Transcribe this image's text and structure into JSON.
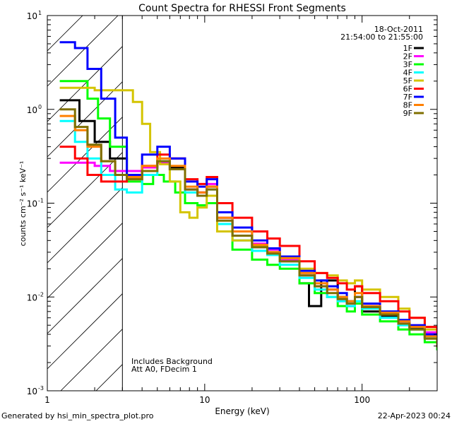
{
  "chart_data": {
    "type": "line",
    "title": "Count Spectra for RHESSI Front Segments",
    "xlabel": "Energy (keV)",
    "ylabel": "counts cm⁻² s⁻¹ keV⁻¹",
    "xscale": "log",
    "yscale": "log",
    "xlim": [
      1,
      300
    ],
    "ylim": [
      0.001,
      10
    ],
    "x_tick_labels": [
      {
        "value": 1,
        "label": "1"
      },
      {
        "value": 10,
        "label": "10"
      },
      {
        "value": 100,
        "label": "100"
      }
    ],
    "y_tick_labels": [
      {
        "value": 10,
        "base": "10",
        "exp": "1"
      },
      {
        "value": 1,
        "base": "10",
        "exp": "0"
      },
      {
        "value": 0.1,
        "base": "10",
        "exp": "-1"
      },
      {
        "value": 0.01,
        "base": "10",
        "exp": "-2"
      },
      {
        "value": 0.001,
        "base": "10",
        "exp": "-3"
      }
    ],
    "hatched_region_kev": [
      1,
      3
    ],
    "date": "18-Oct-2011",
    "time_range": "21:54:00 to 21:55:00",
    "annotations": [
      "Includes Background",
      "Att A0, FDecim 1"
    ],
    "legend_position": "top-right",
    "series": [
      {
        "name": "1F",
        "color": "#000000",
        "points": [
          [
            1.2,
            1.25
          ],
          [
            1.6,
            0.75
          ],
          [
            2.0,
            0.45
          ],
          [
            2.5,
            0.3
          ],
          [
            3.2,
            0.22
          ],
          [
            4.0,
            0.24
          ],
          [
            5.0,
            0.28
          ],
          [
            6.0,
            0.24
          ],
          [
            7.5,
            0.14
          ],
          [
            9.0,
            0.13
          ],
          [
            10.3,
            0.15
          ],
          [
            12,
            0.07
          ],
          [
            15,
            0.045
          ],
          [
            20,
            0.034
          ],
          [
            25,
            0.03
          ],
          [
            30,
            0.024
          ],
          [
            40,
            0.014
          ],
          [
            46,
            0.008
          ],
          [
            55,
            0.015
          ],
          [
            70,
            0.01
          ],
          [
            80,
            0.008
          ],
          [
            90,
            0.013
          ],
          [
            100,
            0.007
          ],
          [
            130,
            0.0063
          ],
          [
            170,
            0.0052
          ],
          [
            200,
            0.0046
          ],
          [
            250,
            0.0037
          ],
          [
            300,
            0.0028
          ]
        ]
      },
      {
        "name": "2F",
        "color": "#ff00ff",
        "points": [
          [
            1.2,
            0.27
          ],
          [
            1.6,
            0.27
          ],
          [
            2.0,
            0.25
          ],
          [
            2.5,
            0.22
          ],
          [
            3.2,
            0.22
          ],
          [
            4.0,
            0.24
          ],
          [
            5.0,
            0.27
          ],
          [
            6.0,
            0.23
          ],
          [
            7.5,
            0.14
          ],
          [
            9.0,
            0.13
          ],
          [
            10.3,
            0.16
          ],
          [
            12,
            0.07
          ],
          [
            15,
            0.05
          ],
          [
            20,
            0.037
          ],
          [
            25,
            0.032
          ],
          [
            30,
            0.025
          ],
          [
            40,
            0.017
          ],
          [
            50,
            0.013
          ],
          [
            60,
            0.012
          ],
          [
            70,
            0.009
          ],
          [
            80,
            0.008
          ],
          [
            90,
            0.01
          ],
          [
            100,
            0.008
          ],
          [
            130,
            0.0065
          ],
          [
            170,
            0.0055
          ],
          [
            200,
            0.005
          ],
          [
            250,
            0.0042
          ],
          [
            300,
            0.0035
          ]
        ]
      },
      {
        "name": "3F",
        "color": "#00ff00",
        "points": [
          [
            1.2,
            2.0
          ],
          [
            1.5,
            2.0
          ],
          [
            1.8,
            1.3
          ],
          [
            2.1,
            0.8
          ],
          [
            2.5,
            0.4
          ],
          [
            3.2,
            0.17
          ],
          [
            4.0,
            0.16
          ],
          [
            4.7,
            0.2
          ],
          [
            5.5,
            0.17
          ],
          [
            6.5,
            0.13
          ],
          [
            7.5,
            0.1
          ],
          [
            9.0,
            0.095
          ],
          [
            10.3,
            0.1
          ],
          [
            12,
            0.05
          ],
          [
            15,
            0.032
          ],
          [
            20,
            0.025
          ],
          [
            25,
            0.022
          ],
          [
            30,
            0.02
          ],
          [
            40,
            0.014
          ],
          [
            50,
            0.011
          ],
          [
            60,
            0.01
          ],
          [
            70,
            0.008
          ],
          [
            80,
            0.007
          ],
          [
            90,
            0.0085
          ],
          [
            100,
            0.0065
          ],
          [
            130,
            0.0055
          ],
          [
            170,
            0.0045
          ],
          [
            200,
            0.004
          ],
          [
            250,
            0.0033
          ],
          [
            300,
            0.0027
          ]
        ]
      },
      {
        "name": "4F",
        "color": "#00ffff",
        "points": [
          [
            1.2,
            0.75
          ],
          [
            1.5,
            0.45
          ],
          [
            1.8,
            0.3
          ],
          [
            2.2,
            0.2
          ],
          [
            2.7,
            0.14
          ],
          [
            3.2,
            0.13
          ],
          [
            4.0,
            0.2
          ],
          [
            5.0,
            0.28
          ],
          [
            6.0,
            0.23
          ],
          [
            7.5,
            0.13
          ],
          [
            9.0,
            0.12
          ],
          [
            10.3,
            0.14
          ],
          [
            12,
            0.06
          ],
          [
            15,
            0.04
          ],
          [
            20,
            0.031
          ],
          [
            25,
            0.028
          ],
          [
            30,
            0.022
          ],
          [
            40,
            0.016
          ],
          [
            50,
            0.012
          ],
          [
            60,
            0.01
          ],
          [
            70,
            0.009
          ],
          [
            80,
            0.008
          ],
          [
            90,
            0.009
          ],
          [
            100,
            0.0075
          ],
          [
            130,
            0.006
          ],
          [
            170,
            0.005
          ],
          [
            200,
            0.0045
          ],
          [
            250,
            0.0037
          ],
          [
            300,
            0.003
          ]
        ]
      },
      {
        "name": "5F",
        "color": "#d4c400",
        "points": [
          [
            1.2,
            1.7
          ],
          [
            1.5,
            1.7
          ],
          [
            2.0,
            1.6
          ],
          [
            2.5,
            1.6
          ],
          [
            3.0,
            1.6
          ],
          [
            3.5,
            1.2
          ],
          [
            4.0,
            0.7
          ],
          [
            4.5,
            0.35
          ],
          [
            5.2,
            0.26
          ],
          [
            6.0,
            0.17
          ],
          [
            7.0,
            0.08
          ],
          [
            8.0,
            0.07
          ],
          [
            9.0,
            0.09
          ],
          [
            10.3,
            0.12
          ],
          [
            12,
            0.05
          ],
          [
            15,
            0.04
          ],
          [
            20,
            0.035
          ],
          [
            25,
            0.03
          ],
          [
            30,
            0.026
          ],
          [
            40,
            0.02
          ],
          [
            50,
            0.018
          ],
          [
            60,
            0.017
          ],
          [
            70,
            0.015
          ],
          [
            80,
            0.014
          ],
          [
            90,
            0.015
          ],
          [
            100,
            0.012
          ],
          [
            130,
            0.01
          ],
          [
            170,
            0.0075
          ],
          [
            200,
            0.006
          ],
          [
            250,
            0.0045
          ],
          [
            300,
            0.0035
          ]
        ]
      },
      {
        "name": "6F",
        "color": "#ff0000",
        "points": [
          [
            1.2,
            0.4
          ],
          [
            1.5,
            0.3
          ],
          [
            1.8,
            0.2
          ],
          [
            2.2,
            0.17
          ],
          [
            2.7,
            0.17
          ],
          [
            3.2,
            0.18
          ],
          [
            4.0,
            0.25
          ],
          [
            5.0,
            0.33
          ],
          [
            6.0,
            0.3
          ],
          [
            7.5,
            0.18
          ],
          [
            9.0,
            0.16
          ],
          [
            10.3,
            0.19
          ],
          [
            12,
            0.1
          ],
          [
            15,
            0.07
          ],
          [
            20,
            0.05
          ],
          [
            25,
            0.042
          ],
          [
            30,
            0.035
          ],
          [
            40,
            0.024
          ],
          [
            50,
            0.018
          ],
          [
            60,
            0.016
          ],
          [
            70,
            0.014
          ],
          [
            80,
            0.012
          ],
          [
            90,
            0.013
          ],
          [
            100,
            0.011
          ],
          [
            130,
            0.009
          ],
          [
            170,
            0.007
          ],
          [
            200,
            0.006
          ],
          [
            250,
            0.0048
          ],
          [
            300,
            0.0038
          ]
        ]
      },
      {
        "name": "7F",
        "color": "#0000ff",
        "points": [
          [
            1.2,
            5.2
          ],
          [
            1.5,
            4.5
          ],
          [
            1.8,
            2.7
          ],
          [
            2.2,
            1.3
          ],
          [
            2.7,
            0.5
          ],
          [
            3.2,
            0.2
          ],
          [
            4.0,
            0.33
          ],
          [
            5.0,
            0.4
          ],
          [
            6.0,
            0.3
          ],
          [
            7.5,
            0.17
          ],
          [
            9.0,
            0.15
          ],
          [
            10.3,
            0.18
          ],
          [
            12,
            0.08
          ],
          [
            15,
            0.055
          ],
          [
            20,
            0.04
          ],
          [
            25,
            0.033
          ],
          [
            30,
            0.027
          ],
          [
            40,
            0.019
          ],
          [
            50,
            0.015
          ],
          [
            60,
            0.013
          ],
          [
            70,
            0.011
          ],
          [
            80,
            0.009
          ],
          [
            90,
            0.01
          ],
          [
            100,
            0.0085
          ],
          [
            130,
            0.007
          ],
          [
            170,
            0.0057
          ],
          [
            200,
            0.005
          ],
          [
            250,
            0.004
          ],
          [
            300,
            0.0032
          ]
        ]
      },
      {
        "name": "8F",
        "color": "#ff8000",
        "points": [
          [
            1.2,
            0.85
          ],
          [
            1.5,
            0.6
          ],
          [
            1.8,
            0.4
          ],
          [
            2.2,
            0.28
          ],
          [
            2.7,
            0.2
          ],
          [
            3.2,
            0.19
          ],
          [
            4.0,
            0.25
          ],
          [
            5.0,
            0.3
          ],
          [
            6.0,
            0.25
          ],
          [
            7.5,
            0.15
          ],
          [
            9.0,
            0.13
          ],
          [
            10.3,
            0.15
          ],
          [
            12,
            0.07
          ],
          [
            15,
            0.05
          ],
          [
            20,
            0.036
          ],
          [
            25,
            0.03
          ],
          [
            30,
            0.026
          ],
          [
            40,
            0.018
          ],
          [
            50,
            0.014
          ],
          [
            60,
            0.012
          ],
          [
            70,
            0.01
          ],
          [
            80,
            0.009
          ],
          [
            90,
            0.011
          ],
          [
            100,
            0.008
          ],
          [
            130,
            0.0068
          ],
          [
            170,
            0.0055
          ],
          [
            200,
            0.0048
          ],
          [
            250,
            0.0038
          ],
          [
            300,
            0.003
          ]
        ]
      },
      {
        "name": "9F",
        "color": "#7f6f00",
        "points": [
          [
            1.2,
            1.0
          ],
          [
            1.5,
            0.65
          ],
          [
            1.8,
            0.42
          ],
          [
            2.2,
            0.28
          ],
          [
            2.7,
            0.2
          ],
          [
            3.2,
            0.18
          ],
          [
            4.0,
            0.22
          ],
          [
            5.0,
            0.28
          ],
          [
            6.0,
            0.23
          ],
          [
            7.5,
            0.14
          ],
          [
            9.0,
            0.12
          ],
          [
            10.3,
            0.14
          ],
          [
            12,
            0.065
          ],
          [
            15,
            0.045
          ],
          [
            20,
            0.034
          ],
          [
            25,
            0.029
          ],
          [
            30,
            0.024
          ],
          [
            40,
            0.017
          ],
          [
            50,
            0.013
          ],
          [
            60,
            0.011
          ],
          [
            70,
            0.0095
          ],
          [
            80,
            0.0085
          ],
          [
            90,
            0.01
          ],
          [
            100,
            0.0078
          ],
          [
            130,
            0.0065
          ],
          [
            170,
            0.0052
          ],
          [
            200,
            0.0045
          ],
          [
            250,
            0.0036
          ],
          [
            300,
            0.0029
          ]
        ]
      }
    ]
  },
  "footer": {
    "left": "Generated by hsi_min_spectra_plot.pro",
    "right": "22-Apr-2023 00:24"
  }
}
